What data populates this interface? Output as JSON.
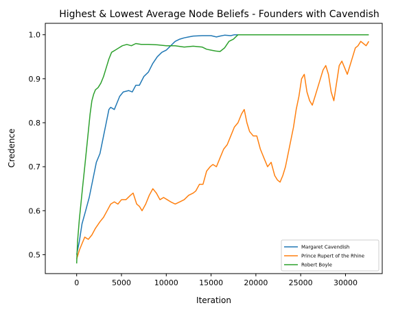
{
  "chart_data": {
    "type": "line",
    "title": "Highest & Lowest Average Node Beliefs - Founders with Cavendish",
    "xlabel": "Iteration",
    "ylabel": "Credence",
    "xlim": [
      -3500,
      34100
    ],
    "ylim": [
      0.457,
      1.026
    ],
    "xticks": [
      0,
      5000,
      10000,
      15000,
      20000,
      25000,
      30000
    ],
    "yticks": [
      0.5,
      0.6,
      0.7,
      0.8,
      0.9,
      1.0
    ],
    "xtick_labels": [
      "0",
      "5000",
      "10000",
      "15000",
      "20000",
      "25000",
      "30000"
    ],
    "ytick_labels": [
      "0.5",
      "0.6",
      "0.7",
      "0.8",
      "0.9",
      "1.0"
    ],
    "grid": false,
    "legend_position": "lower-right",
    "series": [
      {
        "name": "Margaret Cavendish",
        "color": "#1f77b4",
        "points": [
          [
            0,
            0.5
          ],
          [
            300,
            0.53
          ],
          [
            600,
            0.57
          ],
          [
            1000,
            0.6
          ],
          [
            1400,
            0.63
          ],
          [
            1800,
            0.67
          ],
          [
            2200,
            0.71
          ],
          [
            2600,
            0.73
          ],
          [
            3000,
            0.77
          ],
          [
            3300,
            0.8
          ],
          [
            3600,
            0.83
          ],
          [
            3800,
            0.835
          ],
          [
            4200,
            0.83
          ],
          [
            4500,
            0.845
          ],
          [
            4800,
            0.86
          ],
          [
            5200,
            0.87
          ],
          [
            5800,
            0.873
          ],
          [
            6200,
            0.87
          ],
          [
            6600,
            0.885
          ],
          [
            7000,
            0.885
          ],
          [
            7500,
            0.905
          ],
          [
            8000,
            0.915
          ],
          [
            8500,
            0.935
          ],
          [
            9000,
            0.95
          ],
          [
            9500,
            0.96
          ],
          [
            10000,
            0.965
          ],
          [
            10500,
            0.975
          ],
          [
            11000,
            0.985
          ],
          [
            11500,
            0.99
          ],
          [
            12000,
            0.993
          ],
          [
            12500,
            0.995
          ],
          [
            13000,
            0.997
          ],
          [
            14000,
            0.998
          ],
          [
            15000,
            0.998
          ],
          [
            15600,
            0.995
          ],
          [
            16000,
            0.997
          ],
          [
            16500,
            0.999
          ],
          [
            17200,
            0.998
          ],
          [
            17600,
            1.0
          ],
          [
            18000,
            1.0
          ]
        ]
      },
      {
        "name": "Prince Rupert of the Rhine",
        "color": "#ff7f0e",
        "points": [
          [
            0,
            0.49
          ],
          [
            300,
            0.51
          ],
          [
            600,
            0.525
          ],
          [
            900,
            0.54
          ],
          [
            1300,
            0.535
          ],
          [
            1700,
            0.545
          ],
          [
            2100,
            0.56
          ],
          [
            2600,
            0.575
          ],
          [
            3000,
            0.585
          ],
          [
            3400,
            0.6
          ],
          [
            3800,
            0.615
          ],
          [
            4200,
            0.62
          ],
          [
            4600,
            0.615
          ],
          [
            5000,
            0.625
          ],
          [
            5500,
            0.625
          ],
          [
            6000,
            0.635
          ],
          [
            6300,
            0.64
          ],
          [
            6700,
            0.615
          ],
          [
            7000,
            0.61
          ],
          [
            7300,
            0.6
          ],
          [
            7700,
            0.615
          ],
          [
            8100,
            0.635
          ],
          [
            8500,
            0.65
          ],
          [
            8900,
            0.64
          ],
          [
            9300,
            0.625
          ],
          [
            9700,
            0.63
          ],
          [
            10100,
            0.625
          ],
          [
            10500,
            0.62
          ],
          [
            11000,
            0.615
          ],
          [
            11500,
            0.62
          ],
          [
            12000,
            0.625
          ],
          [
            12500,
            0.635
          ],
          [
            13000,
            0.64
          ],
          [
            13300,
            0.645
          ],
          [
            13700,
            0.66
          ],
          [
            14100,
            0.66
          ],
          [
            14500,
            0.69
          ],
          [
            14900,
            0.7
          ],
          [
            15200,
            0.705
          ],
          [
            15600,
            0.7
          ],
          [
            16000,
            0.72
          ],
          [
            16400,
            0.74
          ],
          [
            16800,
            0.75
          ],
          [
            17200,
            0.77
          ],
          [
            17600,
            0.79
          ],
          [
            18000,
            0.8
          ],
          [
            18400,
            0.82
          ],
          [
            18700,
            0.83
          ],
          [
            19000,
            0.8
          ],
          [
            19300,
            0.78
          ],
          [
            19700,
            0.77
          ],
          [
            20100,
            0.77
          ],
          [
            20500,
            0.74
          ],
          [
            20900,
            0.72
          ],
          [
            21300,
            0.7
          ],
          [
            21700,
            0.71
          ],
          [
            22100,
            0.68
          ],
          [
            22400,
            0.67
          ],
          [
            22700,
            0.665
          ],
          [
            23000,
            0.68
          ],
          [
            23300,
            0.7
          ],
          [
            23600,
            0.73
          ],
          [
            23900,
            0.76
          ],
          [
            24200,
            0.79
          ],
          [
            24500,
            0.83
          ],
          [
            24800,
            0.86
          ],
          [
            25100,
            0.9
          ],
          [
            25400,
            0.91
          ],
          [
            25700,
            0.87
          ],
          [
            26000,
            0.85
          ],
          [
            26300,
            0.84
          ],
          [
            26600,
            0.86
          ],
          [
            26900,
            0.88
          ],
          [
            27200,
            0.9
          ],
          [
            27500,
            0.92
          ],
          [
            27800,
            0.93
          ],
          [
            28100,
            0.91
          ],
          [
            28400,
            0.87
          ],
          [
            28700,
            0.85
          ],
          [
            29000,
            0.89
          ],
          [
            29300,
            0.93
          ],
          [
            29600,
            0.94
          ],
          [
            29900,
            0.925
          ],
          [
            30200,
            0.91
          ],
          [
            30500,
            0.93
          ],
          [
            30800,
            0.95
          ],
          [
            31100,
            0.97
          ],
          [
            31400,
            0.975
          ],
          [
            31700,
            0.985
          ],
          [
            32000,
            0.98
          ],
          [
            32300,
            0.975
          ],
          [
            32600,
            0.985
          ]
        ]
      },
      {
        "name": "Robert Boyle",
        "color": "#2ca02c",
        "points": [
          [
            0,
            0.48
          ],
          [
            100,
            0.53
          ],
          [
            300,
            0.58
          ],
          [
            500,
            0.62
          ],
          [
            700,
            0.66
          ],
          [
            900,
            0.7
          ],
          [
            1100,
            0.74
          ],
          [
            1300,
            0.78
          ],
          [
            1500,
            0.82
          ],
          [
            1700,
            0.85
          ],
          [
            1900,
            0.865
          ],
          [
            2100,
            0.875
          ],
          [
            2400,
            0.88
          ],
          [
            2700,
            0.89
          ],
          [
            3000,
            0.905
          ],
          [
            3300,
            0.925
          ],
          [
            3600,
            0.945
          ],
          [
            3900,
            0.96
          ],
          [
            4300,
            0.965
          ],
          [
            4700,
            0.97
          ],
          [
            5100,
            0.975
          ],
          [
            5600,
            0.978
          ],
          [
            6100,
            0.975
          ],
          [
            6600,
            0.98
          ],
          [
            7200,
            0.978
          ],
          [
            8000,
            0.978
          ],
          [
            9000,
            0.977
          ],
          [
            10000,
            0.975
          ],
          [
            11000,
            0.975
          ],
          [
            12000,
            0.972
          ],
          [
            13000,
            0.974
          ],
          [
            14000,
            0.972
          ],
          [
            14500,
            0.967
          ],
          [
            15000,
            0.965
          ],
          [
            15500,
            0.963
          ],
          [
            16000,
            0.962
          ],
          [
            16500,
            0.97
          ],
          [
            17000,
            0.985
          ],
          [
            17500,
            0.99
          ],
          [
            18000,
            1.0
          ],
          [
            32600,
            1.0
          ]
        ]
      }
    ]
  }
}
